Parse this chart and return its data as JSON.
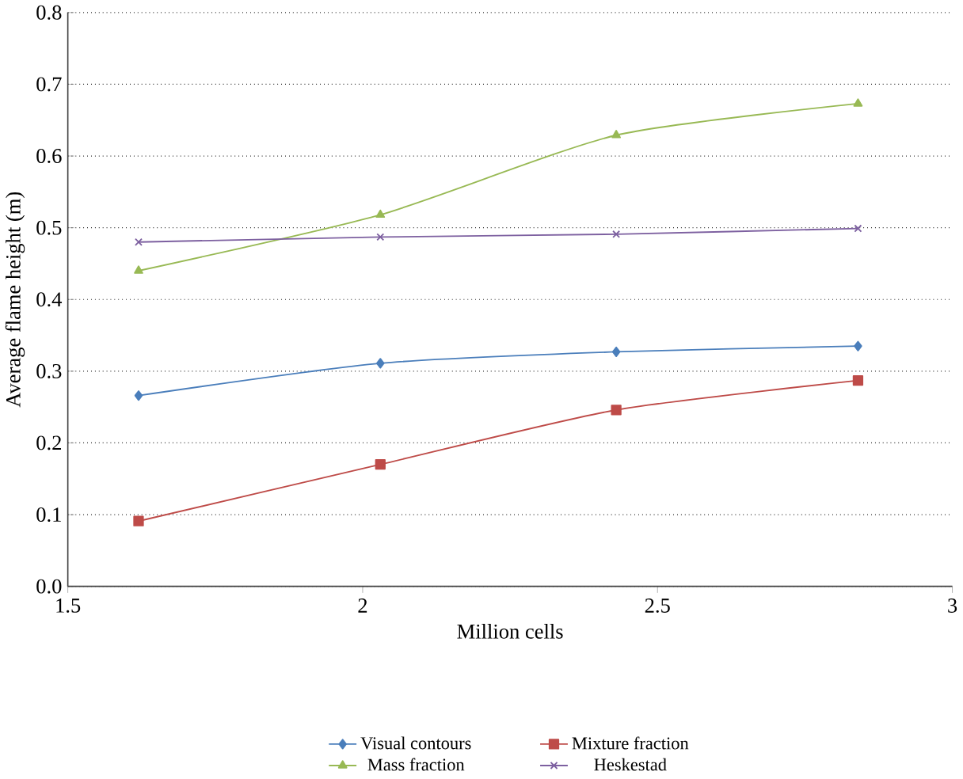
{
  "chart_data": {
    "type": "line",
    "xlabel": "Million cells",
    "ylabel": "Average flame height (m)",
    "x": [
      1.62,
      2.03,
      2.43,
      2.84
    ],
    "series": [
      {
        "name": "Visual contours",
        "color": "#4a7ebb",
        "marker": "diamond",
        "values": [
          0.266,
          0.311,
          0.327,
          0.335
        ]
      },
      {
        "name": "Mixture fraction",
        "color": "#be4b48",
        "marker": "square",
        "values": [
          0.091,
          0.17,
          0.246,
          0.287
        ]
      },
      {
        "name": "Mass fraction",
        "color": "#98b954",
        "marker": "triangle",
        "values": [
          0.44,
          0.518,
          0.629,
          0.673
        ]
      },
      {
        "name": "Heskestad",
        "color": "#7d60a0",
        "marker": "cross",
        "values": [
          0.48,
          0.487,
          0.491,
          0.499
        ]
      }
    ],
    "xlim": [
      1.5,
      3
    ],
    "xticks": [
      1.5,
      2,
      2.5,
      3
    ],
    "ylim": [
      0,
      0.8
    ],
    "yticks": [
      {
        "value": 0,
        "label": "0.0"
      },
      {
        "value": 0.1,
        "label": "0.1"
      },
      {
        "value": 0.2,
        "label": "0.2"
      },
      {
        "value": 0.3,
        "label": "0.3"
      },
      {
        "value": 0.4,
        "label": "0.4"
      },
      {
        "value": 0.5,
        "label": "0.5"
      },
      {
        "value": 0.6,
        "label": "0.6"
      },
      {
        "value": 0.7,
        "label": "0.7"
      },
      {
        "value": 0.8,
        "label": "0.8"
      }
    ],
    "grid": "y",
    "legend": "bottom",
    "line_style": "solid"
  }
}
